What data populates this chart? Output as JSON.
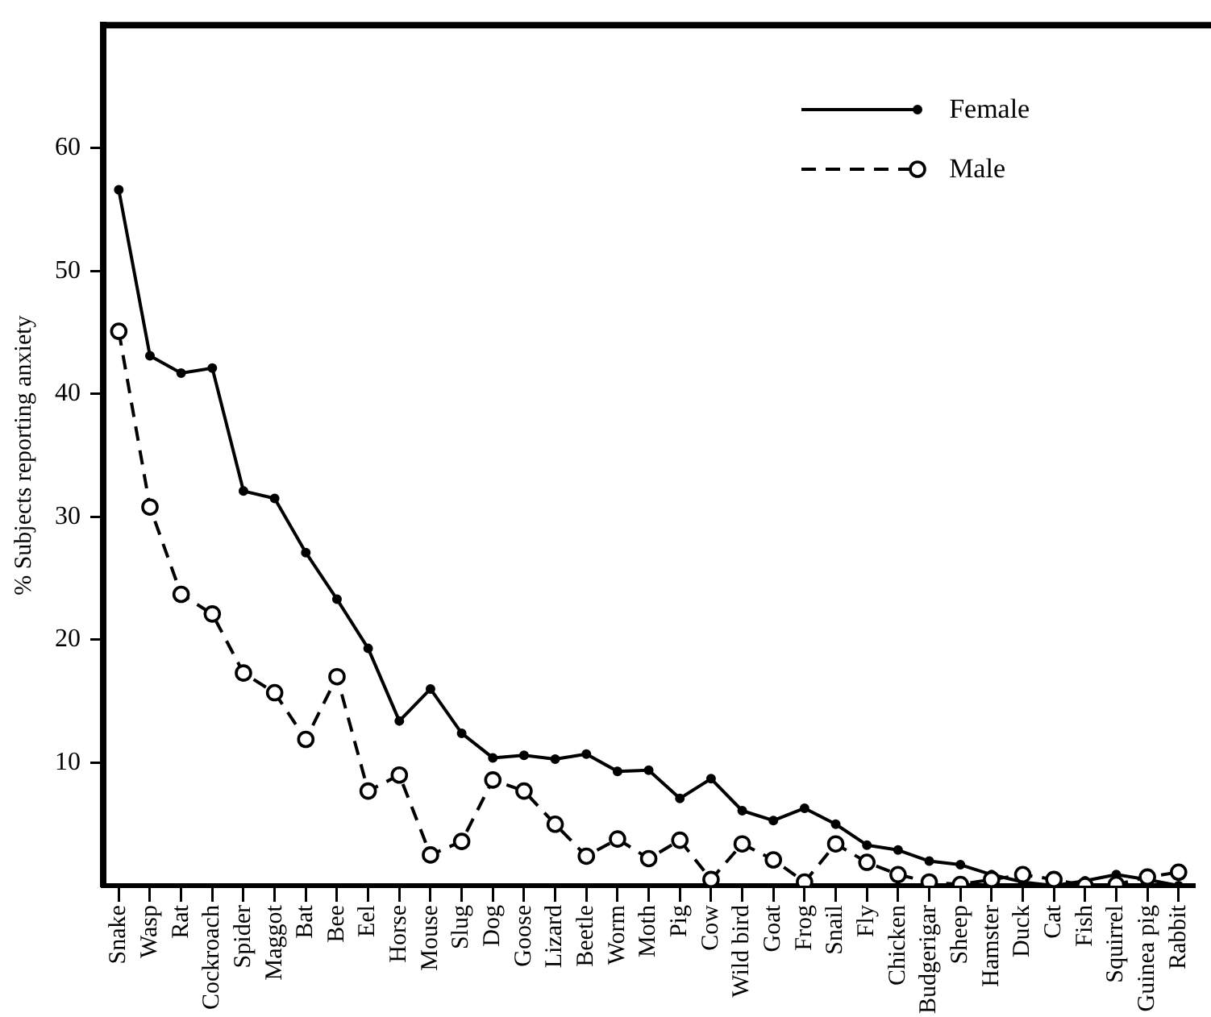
{
  "chart_data": {
    "type": "line",
    "ylabel": "% Subjects reporting anxiety",
    "categories": [
      "Snake",
      "Wasp",
      "Rat",
      "Cockroach",
      "Spider",
      "Maggot",
      "Bat",
      "Bee",
      "Eel",
      "Horse",
      "Mouse",
      "Slug",
      "Dog",
      "Goose",
      "Lizard",
      "Beetle",
      "Worm",
      "Moth",
      "Pig",
      "Cow",
      "Wild bird",
      "Goat",
      "Frog",
      "Snail",
      "Fly",
      "Chicken",
      "Budgerigar",
      "Sheep",
      "Hamster",
      "Duck",
      "Cat",
      "Fish",
      "Squirrel",
      "Guinea pig",
      "Rabbit"
    ],
    "series": [
      {
        "name": "Female",
        "color": "#000000",
        "line_style": "solid",
        "marker": "circle",
        "values": [
          56.6,
          43.1,
          41.7,
          42.1,
          32.1,
          31.5,
          27.1,
          23.3,
          19.3,
          13.4,
          16.0,
          12.4,
          10.4,
          10.6,
          10.3,
          10.7,
          9.3,
          9.4,
          7.1,
          8.7,
          6.1,
          5.3,
          6.3,
          5.0,
          3.3,
          2.9,
          2.0,
          1.7,
          0.9,
          0.3,
          0,
          0.4,
          0.9,
          0.5,
          0
        ]
      },
      {
        "name": "Male",
        "color": "#000000",
        "line_style": "dashed",
        "marker": "circle",
        "values": [
          45.1,
          30.8,
          23.7,
          22.1,
          17.3,
          15.7,
          11.9,
          17.0,
          7.7,
          9.0,
          2.5,
          3.6,
          8.6,
          7.7,
          5.0,
          2.4,
          3.8,
          2.2,
          3.7,
          0.5,
          3.4,
          2.1,
          0.3,
          3.4,
          1.9,
          0.9,
          0.3,
          0.1,
          0.5,
          0.9,
          0.5,
          0,
          0.1,
          0.7,
          1.1
        ]
      }
    ],
    "ylim": [
      0,
      70
    ],
    "yticks": [
      10,
      20,
      30,
      40,
      50,
      60
    ],
    "grid": false,
    "legend": "top right"
  }
}
